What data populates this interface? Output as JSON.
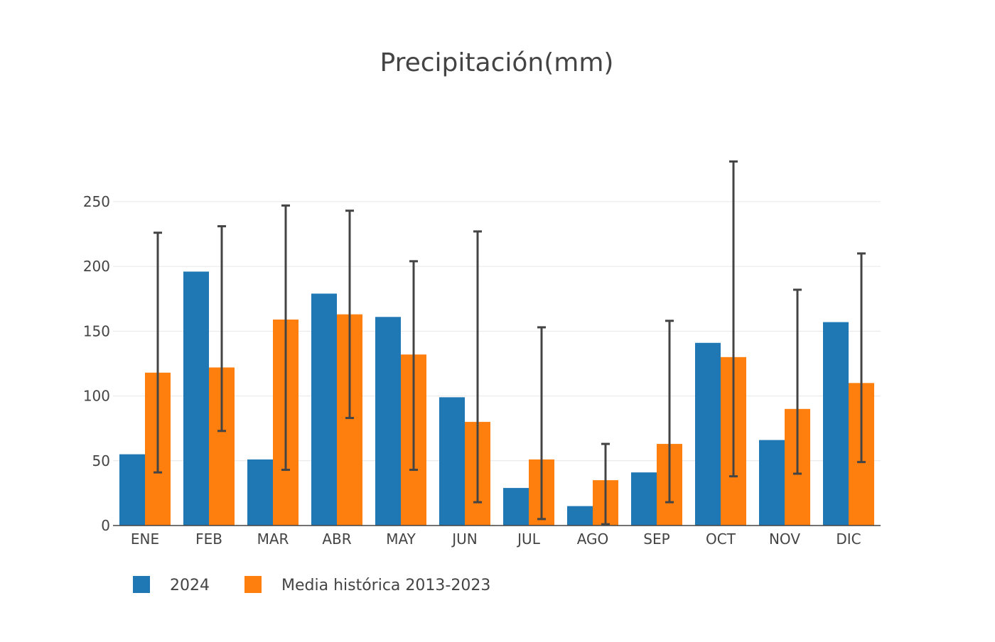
{
  "chart_data": {
    "type": "bar",
    "title": "Precipitación(mm)",
    "xlabel": "",
    "ylabel": "",
    "ylim": [
      0,
      296
    ],
    "yticks": [
      0,
      50,
      100,
      150,
      200,
      250
    ],
    "grid": true,
    "legend_position": "bottom-left",
    "categories": [
      "ENE",
      "FEB",
      "MAR",
      "ABR",
      "MAY",
      "JUN",
      "JUL",
      "AGO",
      "SEP",
      "OCT",
      "NOV",
      "DIC"
    ],
    "series": [
      {
        "name": "2024",
        "color": "#1f77b4",
        "values": [
          55,
          196,
          51,
          179,
          161,
          99,
          29,
          15,
          41,
          141,
          66,
          157
        ]
      },
      {
        "name": "Media histórica 2013-2023",
        "color": "#ff7f0e",
        "values": [
          118,
          122,
          159,
          163,
          132,
          80,
          51,
          35,
          63,
          130,
          90,
          110
        ],
        "error_low": [
          41,
          73,
          43,
          83,
          43,
          18,
          5,
          1,
          18,
          38,
          40,
          49
        ],
        "error_high": [
          226,
          231,
          247,
          243,
          204,
          227,
          153,
          63,
          158,
          281,
          182,
          210
        ]
      }
    ]
  }
}
